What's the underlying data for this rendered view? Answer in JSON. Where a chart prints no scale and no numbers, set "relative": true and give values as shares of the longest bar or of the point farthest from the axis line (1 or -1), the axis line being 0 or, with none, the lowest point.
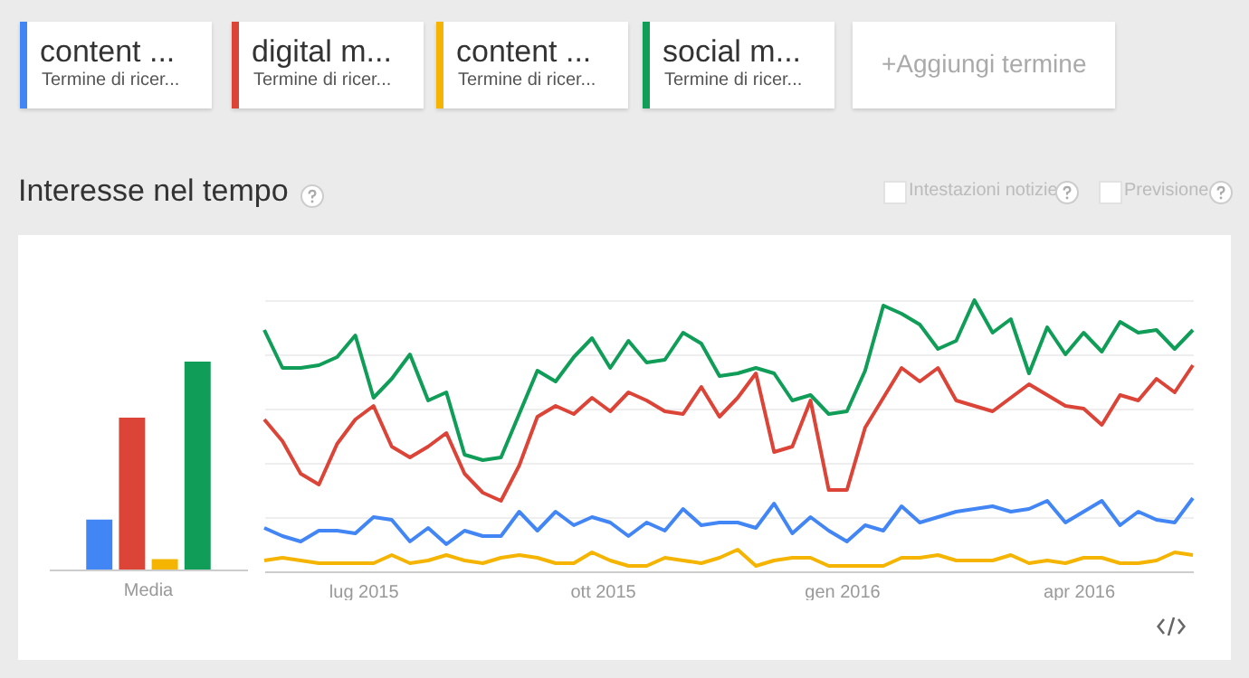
{
  "chart_data": [
    {
      "type": "bar",
      "relative": true,
      "categories": [
        "Media"
      ],
      "series": [
        {
          "color": "#4285f4",
          "values": [
            0.24
          ]
        },
        {
          "color": "#db4437",
          "values": [
            0.73
          ]
        },
        {
          "color": "#f4b400",
          "values": [
            0.05
          ]
        },
        {
          "color": "#0f9d58",
          "values": [
            1
          ]
        }
      ]
    },
    {
      "type": "line",
      "relative": true,
      "title": "Interesse nel tempo",
      "legend": "top",
      "grid": "y",
      "annotations": [
        "Termine di ricer...",
        "Termine di ricer...",
        "Termine di ricer...",
        "Termine di ricer...",
        "+Aggiungi termine",
        "Intestazioni notizie",
        "Previsione"
      ],
      "xlim": [
        "2015-05-24",
        "2016-05-15"
      ],
      "xticks": [
        {
          "value": "2015-07-01",
          "label": "lug 2015"
        },
        {
          "value": "2015-10-01",
          "label": "ott 2015"
        },
        {
          "value": "2016-01-01",
          "label": "gen 2016"
        },
        {
          "value": "2016-04-01",
          "label": "apr 2016"
        }
      ],
      "x": [
        "2015-05-24",
        "2015-05-31",
        "2015-06-07",
        "2015-06-14",
        "2015-06-21",
        "2015-06-28",
        "2015-07-05",
        "2015-07-12",
        "2015-07-19",
        "2015-07-26",
        "2015-08-02",
        "2015-08-09",
        "2015-08-16",
        "2015-08-23",
        "2015-08-30",
        "2015-09-06",
        "2015-09-13",
        "2015-09-20",
        "2015-09-27",
        "2015-10-04",
        "2015-10-11",
        "2015-10-18",
        "2015-10-25",
        "2015-11-01",
        "2015-11-08",
        "2015-11-15",
        "2015-11-22",
        "2015-11-29",
        "2015-12-06",
        "2015-12-13",
        "2015-12-20",
        "2015-12-27",
        "2016-01-03",
        "2016-01-10",
        "2016-01-17",
        "2016-01-24",
        "2016-01-31",
        "2016-02-07",
        "2016-02-14",
        "2016-02-21",
        "2016-02-28",
        "2016-03-06",
        "2016-03-13",
        "2016-03-20",
        "2016-03-27",
        "2016-04-03",
        "2016-04-10",
        "2016-04-17",
        "2016-04-24",
        "2016-05-01",
        "2016-05-08",
        "2016-05-15"
      ],
      "series": [
        {
          "name": "content ...",
          "color": "#4285f4",
          "values": [
            0.16,
            0.13,
            0.11,
            0.15,
            0.15,
            0.14,
            0.2,
            0.19,
            0.11,
            0.16,
            0.1,
            0.15,
            0.13,
            0.13,
            0.22,
            0.15,
            0.22,
            0.17,
            0.2,
            0.18,
            0.13,
            0.18,
            0.15,
            0.23,
            0.17,
            0.18,
            0.18,
            0.16,
            0.25,
            0.14,
            0.2,
            0.15,
            0.11,
            0.17,
            0.15,
            0.24,
            0.18,
            0.2,
            0.22,
            0.23,
            0.24,
            0.22,
            0.23,
            0.26,
            0.18,
            0.22,
            0.26,
            0.17,
            0.22,
            0.19,
            0.18,
            0.27
          ]
        },
        {
          "name": "digital m...",
          "color": "#db4437",
          "values": [
            0.56,
            0.48,
            0.36,
            0.32,
            0.47,
            0.56,
            0.61,
            0.46,
            0.42,
            0.46,
            0.51,
            0.36,
            0.29,
            0.26,
            0.39,
            0.57,
            0.61,
            0.58,
            0.64,
            0.59,
            0.66,
            0.63,
            0.59,
            0.58,
            0.68,
            0.57,
            0.64,
            0.73,
            0.44,
            0.46,
            0.63,
            0.3,
            0.3,
            0.53,
            0.64,
            0.75,
            0.7,
            0.75,
            0.63,
            0.61,
            0.59,
            0.64,
            0.69,
            0.65,
            0.61,
            0.6,
            0.54,
            0.65,
            0.63,
            0.71,
            0.66,
            0.76
          ]
        },
        {
          "name": "content ...",
          "color": "#f4b400",
          "values": [
            0.04,
            0.05,
            0.04,
            0.03,
            0.03,
            0.03,
            0.03,
            0.06,
            0.03,
            0.04,
            0.06,
            0.04,
            0.03,
            0.05,
            0.06,
            0.05,
            0.03,
            0.03,
            0.07,
            0.04,
            0.02,
            0.02,
            0.05,
            0.04,
            0.03,
            0.05,
            0.08,
            0.02,
            0.04,
            0.05,
            0.05,
            0.02,
            0.02,
            0.02,
            0.02,
            0.05,
            0.05,
            0.06,
            0.04,
            0.04,
            0.04,
            0.06,
            0.03,
            0.04,
            0.03,
            0.05,
            0.05,
            0.03,
            0.03,
            0.04,
            0.07,
            0.06
          ]
        },
        {
          "name": "social m...",
          "color": "#0f9d58",
          "values": [
            0.89,
            0.75,
            0.75,
            0.76,
            0.79,
            0.87,
            0.64,
            0.71,
            0.8,
            0.63,
            0.66,
            0.43,
            0.41,
            0.42,
            0.58,
            0.74,
            0.7,
            0.79,
            0.86,
            0.75,
            0.85,
            0.77,
            0.78,
            0.88,
            0.84,
            0.72,
            0.73,
            0.75,
            0.73,
            0.63,
            0.65,
            0.58,
            0.59,
            0.74,
            0.98,
            0.95,
            0.91,
            0.82,
            0.85,
            1.0,
            0.88,
            0.93,
            0.73,
            0.9,
            0.8,
            0.88,
            0.81,
            0.92,
            0.88,
            0.89,
            0.82,
            0.89
          ]
        }
      ]
    }
  ]
}
